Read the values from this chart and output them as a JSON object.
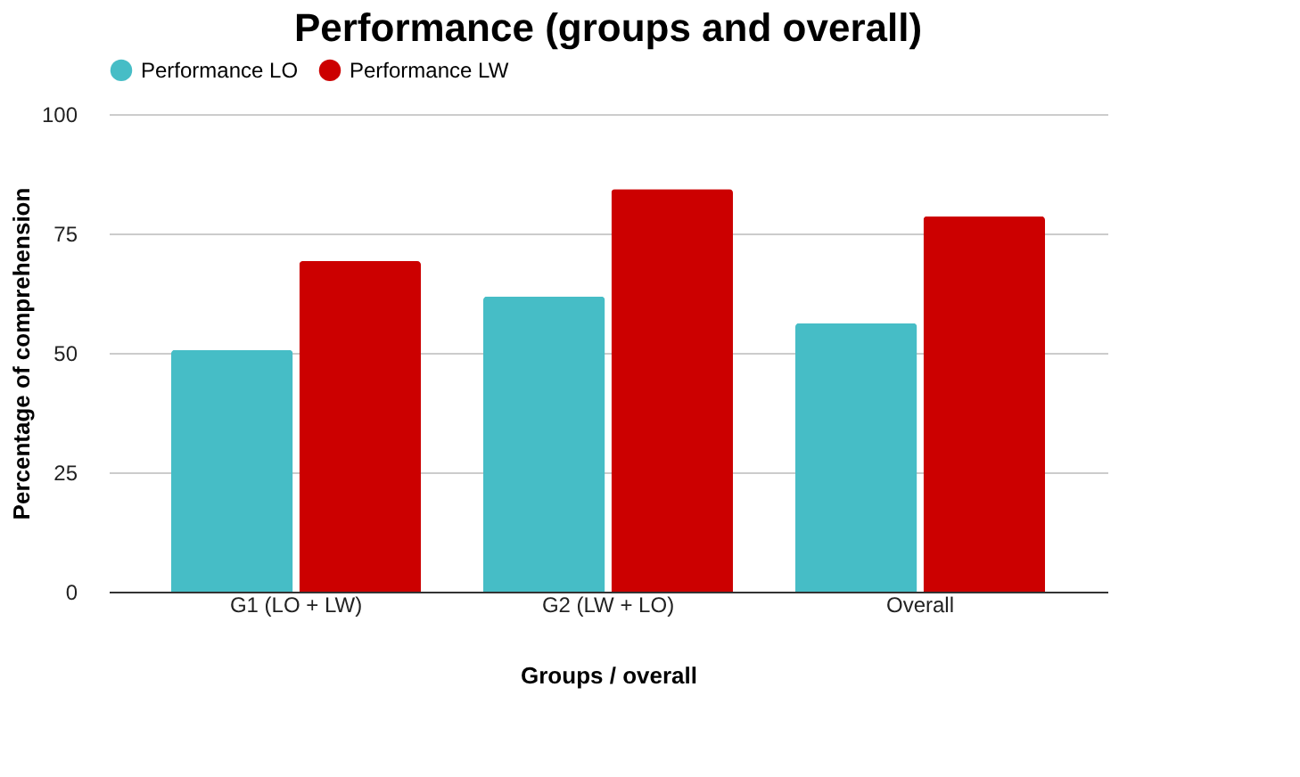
{
  "chart_data": {
    "type": "bar",
    "title": "Performance (groups and overall)",
    "xlabel": "Groups / overall",
    "ylabel": "Percentage of comprehension",
    "categories": [
      "G1 (LO + LW)",
      "G2 (LW + LO)",
      "Overall"
    ],
    "series": [
      {
        "name": "Performance LO",
        "color": "#46bdc6",
        "values": [
          50.6,
          61.8,
          56.2
        ]
      },
      {
        "name": "Performance LW",
        "color": "#cc0000",
        "values": [
          69.2,
          84.3,
          78.6
        ]
      }
    ],
    "ylim": [
      0,
      100
    ],
    "yticks": [
      0,
      25,
      50,
      75,
      100
    ],
    "grid": "y",
    "legend": "top"
  }
}
